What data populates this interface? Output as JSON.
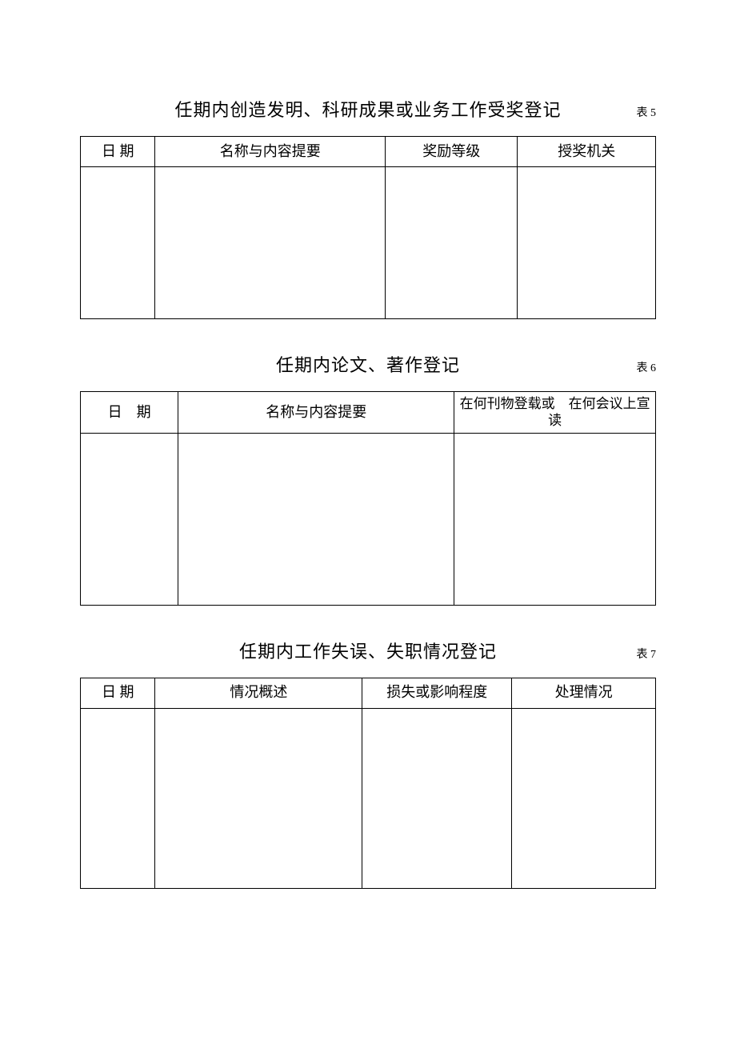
{
  "sections": [
    {
      "title": "任期内创造发明、科研成果或业务工作受奖登记",
      "tableLabel": "表 5",
      "columns": [
        {
          "label": "日 期",
          "width": "13%"
        },
        {
          "label": "名称与内容提要",
          "width": "40%"
        },
        {
          "label": "奖励等级",
          "width": "23%"
        },
        {
          "label": "授奖机关",
          "width": "24%"
        }
      ],
      "bodyHeight": 190
    },
    {
      "title": "任期内论文、著作登记",
      "tableLabel": "表 6",
      "columns": [
        {
          "label": "日　期",
          "width": "17%"
        },
        {
          "label": "名称与内容提要",
          "width": "48%"
        },
        {
          "label": "在何刊物登载或　在何会议上宣读",
          "width": "35%",
          "multiline": true
        }
      ],
      "bodyHeight": 215
    },
    {
      "title": "任期内工作失误、失职情况登记",
      "tableLabel": "表 7",
      "columns": [
        {
          "label": "日 期",
          "width": "13%"
        },
        {
          "label": "情况概述",
          "width": "36%"
        },
        {
          "label": "损失或影响程度",
          "width": "26%"
        },
        {
          "label": "处理情况",
          "width": "25%"
        }
      ],
      "bodyHeight": 225
    }
  ],
  "style": {
    "background": "#ffffff",
    "borderColor": "#000000",
    "titleFontSize": 22,
    "labelFontSize": 14,
    "headerFontSize": 18
  }
}
